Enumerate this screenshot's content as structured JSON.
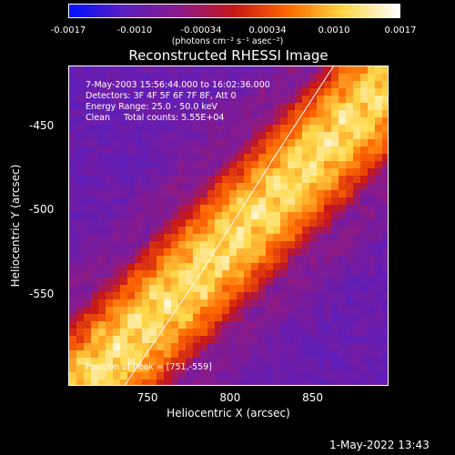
{
  "colorbar": {
    "ticks": [
      "-0.0017",
      "-0.0010",
      "-0.00034",
      "0.00034",
      "0.0010",
      "0.0017"
    ],
    "units": "(photons cm⁻² s⁻¹ asec⁻²)",
    "colors": [
      "#0011ff",
      "#5a1fc0",
      "#8a1a8a",
      "#c81818",
      "#ff6a00",
      "#ffd84a",
      "#ffffff"
    ]
  },
  "chart_data": {
    "type": "heatmap",
    "title": "Reconstructed RHESSI Image",
    "xlabel": "Heliocentric X (arcsec)",
    "ylabel": "Heliocentric Y (arcsec)",
    "xlim": [
      702,
      896
    ],
    "ylim": [
      -605,
      -414
    ],
    "xticks": [
      "750",
      "800",
      "850"
    ],
    "yticks": [
      "-450",
      "-500",
      "-550"
    ],
    "annotations": [
      "7-May-2003 15:56:44.000 to 16:02:36.000",
      "Detectors: 3F 4F 5F 6F 7F 8F, Att 0",
      "Energy Range: 25.0 - 50.0 keV",
      "Clean     Total counts: 5.55E+04"
    ],
    "peak_label": "Position of Peak = [751,-559]",
    "peak": {
      "x": 751,
      "y": -559
    },
    "limb_curve": {
      "x": [
        735,
        780,
        825,
        862
      ],
      "y": [
        -605,
        -540,
        -470,
        -414
      ]
    }
  },
  "datestamp": "1-May-2022 13:43"
}
